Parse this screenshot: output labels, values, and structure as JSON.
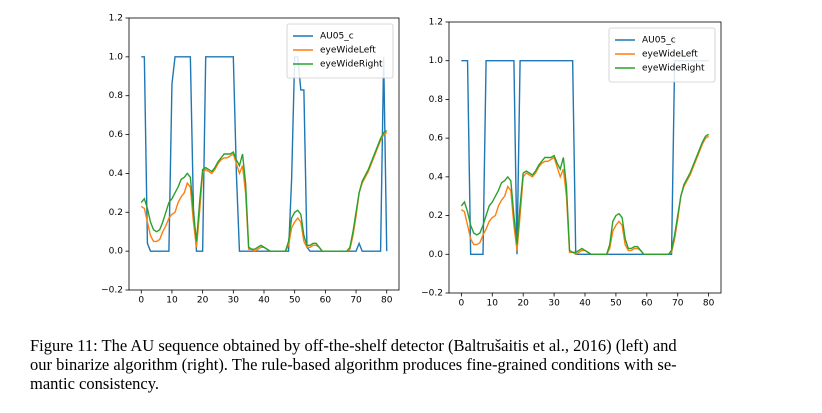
{
  "chart_data": [
    {
      "type": "line",
      "xlim": [
        -4,
        84
      ],
      "ylim": [
        -0.2,
        1.2
      ],
      "xticks": [
        0,
        10,
        20,
        30,
        40,
        50,
        60,
        70,
        80
      ],
      "yticks": [
        {
          "value": -0.2,
          "label": "−0.2"
        },
        {
          "value": 0,
          "label": "0.0"
        },
        0.2,
        0.4,
        0.6,
        0.8,
        {
          "value": 1,
          "label": "1.0"
        },
        1.2
      ],
      "legend": "upper right",
      "x": [
        0,
        1,
        2,
        3,
        4,
        5,
        6,
        7,
        8,
        9,
        10,
        11,
        12,
        13,
        14,
        15,
        16,
        17,
        18,
        19,
        20,
        21,
        22,
        23,
        24,
        25,
        26,
        27,
        28,
        29,
        30,
        31,
        32,
        33,
        34,
        35,
        36,
        37,
        38,
        39,
        40,
        41,
        42,
        43,
        44,
        45,
        46,
        47,
        48,
        49,
        50,
        51,
        52,
        53,
        54,
        55,
        56,
        57,
        58,
        59,
        60,
        61,
        62,
        63,
        64,
        65,
        66,
        67,
        68,
        69,
        70,
        71,
        72,
        73,
        74,
        75,
        76,
        77,
        78,
        79,
        80
      ],
      "series": [
        {
          "name": "AU05_c",
          "color": "#1f77b4",
          "values": [
            1,
            1,
            0.04,
            0,
            0,
            0,
            0,
            0,
            0,
            0,
            0.86,
            1,
            1,
            1,
            1,
            1,
            1,
            0.22,
            0,
            0,
            0,
            1,
            1,
            1,
            1,
            1,
            1,
            1,
            1,
            1,
            1,
            0.4,
            0,
            0,
            0,
            0,
            0,
            0,
            0,
            0,
            0,
            0,
            0,
            0,
            0,
            0,
            0,
            0,
            0,
            0.37,
            1,
            1,
            0.83,
            0.83,
            0.02,
            0,
            0,
            0,
            0,
            0,
            0,
            0,
            0,
            0,
            0,
            0,
            0,
            0,
            0,
            0,
            0,
            0.04,
            0,
            0,
            0,
            0,
            0,
            0,
            0,
            1,
            0
          ]
        },
        {
          "name": "eyeWideLeft",
          "color": "#ff7f0e",
          "values": [
            0.23,
            0.22,
            0.15,
            0.08,
            0.05,
            0.05,
            0.06,
            0.1,
            0.13,
            0.17,
            0.19,
            0.2,
            0.25,
            0.28,
            0.3,
            0.35,
            0.33,
            0.15,
            0.02,
            0.2,
            0.4,
            0.42,
            0.41,
            0.4,
            0.42,
            0.45,
            0.47,
            0.48,
            0.48,
            0.49,
            0.5,
            0.45,
            0.4,
            0.44,
            0.3,
            0.01,
            0.01,
            0,
            0.01,
            0.02,
            0.02,
            0.01,
            0,
            0,
            0,
            0,
            0,
            0,
            0.03,
            0.12,
            0.15,
            0.17,
            0.15,
            0.05,
            0.02,
            0.02,
            0.03,
            0.03,
            0.02,
            0,
            0,
            0,
            0,
            0,
            0,
            0,
            0,
            0,
            0.01,
            0.08,
            0.18,
            0.3,
            0.35,
            0.38,
            0.41,
            0.45,
            0.49,
            0.53,
            0.57,
            0.6,
            0.61
          ]
        },
        {
          "name": "eyeWideRight",
          "color": "#2ca02c",
          "values": [
            0.25,
            0.27,
            0.22,
            0.15,
            0.11,
            0.1,
            0.11,
            0.15,
            0.2,
            0.25,
            0.27,
            0.3,
            0.33,
            0.37,
            0.38,
            0.4,
            0.38,
            0.2,
            0.05,
            0.25,
            0.42,
            0.43,
            0.42,
            0.41,
            0.43,
            0.46,
            0.48,
            0.5,
            0.5,
            0.5,
            0.51,
            0.47,
            0.44,
            0.5,
            0.35,
            0.02,
            0.01,
            0.01,
            0.02,
            0.03,
            0.02,
            0.01,
            0,
            0,
            0,
            0,
            0,
            0,
            0.05,
            0.17,
            0.2,
            0.21,
            0.19,
            0.08,
            0.03,
            0.03,
            0.04,
            0.04,
            0.02,
            0,
            0,
            0,
            0,
            0,
            0,
            0,
            0,
            0,
            0.02,
            0.1,
            0.2,
            0.3,
            0.36,
            0.39,
            0.42,
            0.46,
            0.5,
            0.54,
            0.58,
            0.61,
            0.62
          ]
        }
      ]
    },
    {
      "type": "line",
      "xlim": [
        -4,
        84
      ],
      "ylim": [
        -0.2,
        1.2
      ],
      "xticks": [
        0,
        10,
        20,
        30,
        40,
        50,
        60,
        70,
        80
      ],
      "yticks": [
        {
          "value": -0.2,
          "label": "−0.2"
        },
        {
          "value": 0,
          "label": "0.0"
        },
        0.2,
        0.4,
        0.6,
        0.8,
        {
          "value": 1,
          "label": "1.0"
        },
        1.2
      ],
      "legend": "upper right",
      "x": [
        0,
        1,
        2,
        3,
        4,
        5,
        6,
        7,
        8,
        9,
        10,
        11,
        12,
        13,
        14,
        15,
        16,
        17,
        18,
        19,
        20,
        21,
        22,
        23,
        24,
        25,
        26,
        27,
        28,
        29,
        30,
        31,
        32,
        33,
        34,
        35,
        36,
        37,
        38,
        39,
        40,
        41,
        42,
        43,
        44,
        45,
        46,
        47,
        48,
        49,
        50,
        51,
        52,
        53,
        54,
        55,
        56,
        57,
        58,
        59,
        60,
        61,
        62,
        63,
        64,
        65,
        66,
        67,
        68,
        69,
        70,
        71,
        72,
        73,
        74,
        75,
        76,
        77,
        78,
        79,
        80
      ],
      "series": [
        {
          "name": "AU05_c",
          "color": "#1f77b4",
          "values": [
            1,
            1,
            1,
            0,
            0,
            0,
            0,
            0,
            1,
            1,
            1,
            1,
            1,
            1,
            1,
            1,
            1,
            1,
            0,
            1,
            1,
            1,
            1,
            1,
            1,
            1,
            1,
            1,
            1,
            1,
            1,
            1,
            1,
            1,
            1,
            1,
            1,
            0,
            0,
            0,
            0,
            0,
            0,
            0,
            0,
            0,
            0,
            0,
            0,
            0,
            0,
            0,
            0,
            0,
            0,
            0,
            0,
            0,
            0,
            0,
            0,
            0,
            0,
            0,
            0,
            0,
            0,
            0,
            0,
            1,
            1,
            1,
            1,
            1,
            1,
            1,
            1,
            1,
            1,
            1,
            1
          ]
        },
        {
          "name": "eyeWideLeft",
          "color": "#ff7f0e",
          "values": [
            0.23,
            0.22,
            0.15,
            0.08,
            0.05,
            0.05,
            0.06,
            0.1,
            0.13,
            0.17,
            0.19,
            0.2,
            0.25,
            0.28,
            0.3,
            0.35,
            0.33,
            0.15,
            0.02,
            0.2,
            0.4,
            0.42,
            0.41,
            0.4,
            0.42,
            0.45,
            0.47,
            0.48,
            0.48,
            0.49,
            0.5,
            0.45,
            0.4,
            0.44,
            0.3,
            0.01,
            0.01,
            0,
            0.01,
            0.02,
            0.02,
            0.01,
            0,
            0,
            0,
            0,
            0,
            0,
            0.03,
            0.12,
            0.15,
            0.17,
            0.15,
            0.05,
            0.02,
            0.02,
            0.03,
            0.03,
            0.02,
            0,
            0,
            0,
            0,
            0,
            0,
            0,
            0,
            0,
            0.01,
            0.08,
            0.18,
            0.3,
            0.35,
            0.38,
            0.41,
            0.45,
            0.49,
            0.53,
            0.57,
            0.6,
            0.61
          ]
        },
        {
          "name": "eyeWideRight",
          "color": "#2ca02c",
          "values": [
            0.25,
            0.27,
            0.22,
            0.15,
            0.11,
            0.1,
            0.11,
            0.15,
            0.2,
            0.25,
            0.27,
            0.3,
            0.33,
            0.37,
            0.38,
            0.4,
            0.38,
            0.2,
            0.05,
            0.25,
            0.42,
            0.43,
            0.42,
            0.41,
            0.43,
            0.46,
            0.48,
            0.5,
            0.5,
            0.5,
            0.51,
            0.47,
            0.44,
            0.5,
            0.35,
            0.02,
            0.01,
            0.01,
            0.02,
            0.03,
            0.02,
            0.01,
            0,
            0,
            0,
            0,
            0,
            0,
            0.05,
            0.17,
            0.2,
            0.21,
            0.19,
            0.08,
            0.03,
            0.03,
            0.04,
            0.04,
            0.02,
            0,
            0,
            0,
            0,
            0,
            0,
            0,
            0,
            0,
            0.02,
            0.1,
            0.2,
            0.3,
            0.36,
            0.39,
            0.42,
            0.46,
            0.5,
            0.54,
            0.58,
            0.61,
            0.62
          ]
        }
      ]
    }
  ],
  "caption": [
    "Figure 11: The AU sequence obtained by off-the-shelf detector (Baltrušaitis et al., 2016) (left) and",
    "our binarize algorithm (right). The rule-based algorithm produces fine-grained conditions with se-",
    "mantic consistency."
  ]
}
